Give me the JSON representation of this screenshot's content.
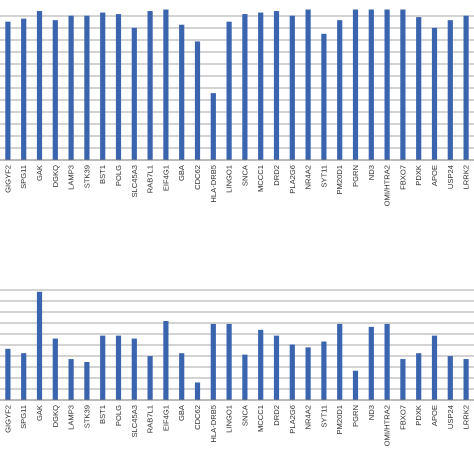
{
  "chart_data": [
    {
      "type": "bar",
      "categories": [
        "GIGYF2",
        "SPG11",
        "GAK",
        "DGKQ",
        "LAMP3",
        "STK39",
        "BST1",
        "POLG",
        "SLC45A3",
        "RAB7L1",
        "EIF4G1",
        "GBA",
        "CDC62",
        "HLA-DRB5",
        "LINGO1",
        "SNCA",
        "MCCC1",
        "DRD2",
        "PLA2G6",
        "NR4A2",
        "SYT11",
        "PM20D1",
        "PGRN",
        "ND3",
        "OMI/HTRA2",
        "FBXO7",
        "PDXK",
        "APOE",
        "USP24",
        "LRRK2"
      ],
      "values": [
        91,
        93,
        98,
        92,
        95,
        95,
        97,
        96,
        87,
        98,
        99,
        89,
        78,
        44,
        91,
        96,
        97,
        98,
        95,
        99,
        83,
        92,
        99,
        99,
        99,
        99,
        94,
        87,
        92,
        95
      ],
      "ylim": [
        0,
        100
      ],
      "grid": true,
      "colors": {
        "bar": "#3a64ad",
        "grid": "#8a8a8a"
      }
    },
    {
      "type": "bar",
      "categories": [
        "GIGYF2",
        "SPG11",
        "GAK",
        "DGKQ",
        "LAMP3",
        "STK39",
        "BST1",
        "POLG",
        "SLC45A3",
        "RAB7L1",
        "EIF4G1",
        "GBA",
        "CDC62",
        "HLA-DRB5",
        "LINGO1",
        "SNCA",
        "MCCC1",
        "DRD2",
        "PLA2G6",
        "NR4A2",
        "SYT11",
        "PM20D1",
        "PGRN",
        "ND3",
        "OMI/HTRA2",
        "FBXO7",
        "PDXK",
        "APOE",
        "USP24",
        "LRRK2"
      ],
      "values": [
        39.5,
        38,
        59,
        43,
        36,
        35,
        44,
        44,
        43,
        37,
        49,
        38,
        28,
        48,
        48,
        37.5,
        46,
        44,
        41,
        40,
        42,
        48,
        32,
        47,
        48,
        36,
        38,
        44,
        37,
        36
      ],
      "ylim": [
        22,
        62
      ],
      "grid": true,
      "colors": {
        "bar": "#3a64ad",
        "grid": "#8a8a8a"
      }
    }
  ]
}
